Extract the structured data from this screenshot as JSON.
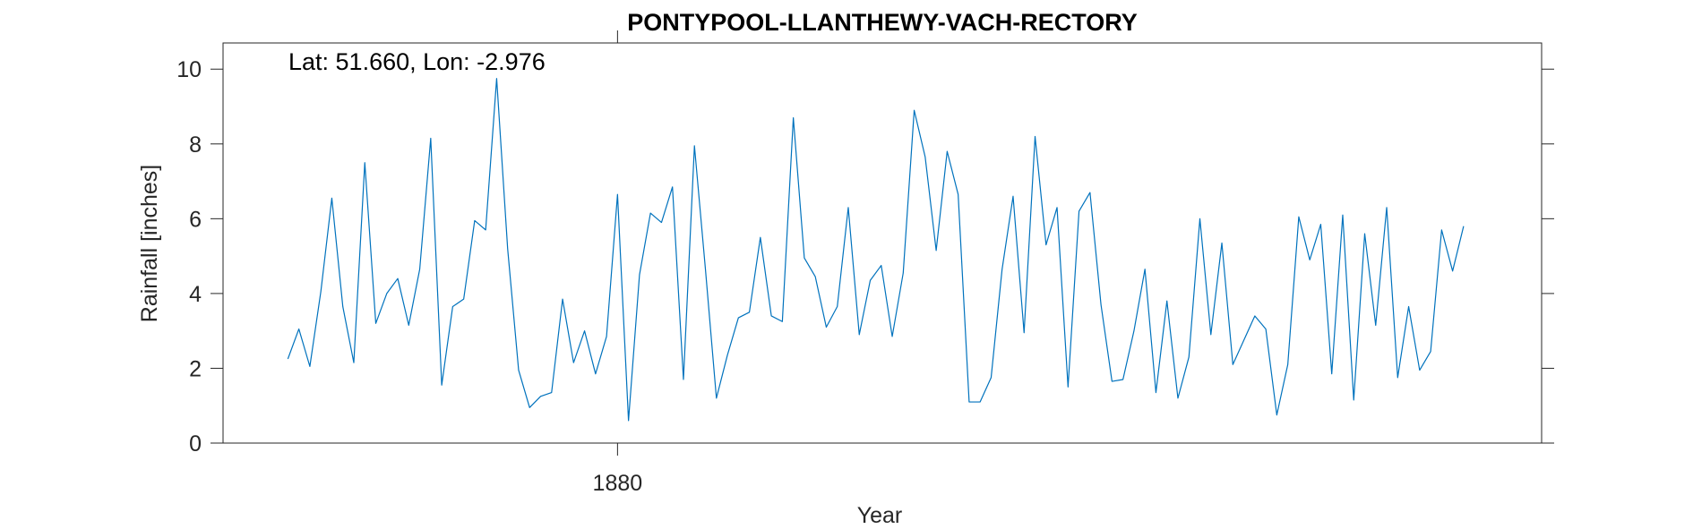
{
  "chart_data": {
    "type": "line",
    "title": "PONTYPOOL-LLANTHEWY-VACH-RECTORY",
    "xlabel": "Year",
    "ylabel": "Rainfall [inches]",
    "annotation": "Lat: 51.660, Lon: -2.976",
    "xticks": [
      {
        "label": "1880",
        "value": 1880
      }
    ],
    "yticks": [
      0,
      2,
      4,
      6,
      8,
      10
    ],
    "xlim": [
      1876.41,
      1888.41
    ],
    "ylim": [
      0,
      10.7
    ],
    "grid": false,
    "series_color": "#0072BD",
    "series": [
      {
        "x": [
          1877.0,
          1877.1,
          1877.2,
          1877.3,
          1877.4,
          1877.5,
          1877.6,
          1877.7,
          1877.8,
          1877.9,
          1878.0,
          1878.1,
          1878.2,
          1878.3,
          1878.4,
          1878.5,
          1878.6,
          1878.7,
          1878.8,
          1878.9,
          1879.0,
          1879.1,
          1879.2,
          1879.3,
          1879.4,
          1879.5,
          1879.6,
          1879.7,
          1879.8,
          1879.9,
          1880.0,
          1880.1,
          1880.2,
          1880.3,
          1880.4,
          1880.5,
          1880.6,
          1880.7,
          1880.8,
          1880.9,
          1881.0,
          1881.1,
          1881.2,
          1881.3,
          1881.4,
          1881.5,
          1881.6,
          1881.7,
          1881.8,
          1881.9,
          1882.0,
          1882.1,
          1882.2,
          1882.3,
          1882.4,
          1882.5,
          1882.6,
          1882.7,
          1882.8,
          1882.9,
          1883.0,
          1883.1,
          1883.2,
          1883.3,
          1883.4,
          1883.5,
          1883.6,
          1883.7,
          1883.8,
          1883.9,
          1884.0,
          1884.1,
          1884.2,
          1884.3,
          1884.4,
          1884.5,
          1884.6,
          1884.7,
          1884.8,
          1884.9,
          1885.0,
          1885.1,
          1885.2,
          1885.3,
          1885.4,
          1885.5,
          1885.6,
          1885.7,
          1885.8,
          1885.9,
          1886.0,
          1886.1,
          1886.2,
          1886.3,
          1886.4,
          1886.5,
          1886.6,
          1886.7,
          1886.8,
          1886.9,
          1887.0,
          1887.1,
          1887.2,
          1887.3,
          1887.4,
          1887.5,
          1887.6,
          1887.7
        ],
        "values": [
          2.25,
          3.05,
          2.05,
          4.05,
          6.55,
          3.65,
          2.15,
          7.5,
          3.2,
          4.0,
          4.4,
          3.15,
          4.65,
          8.15,
          1.55,
          3.65,
          3.85,
          5.95,
          5.7,
          9.75,
          5.2,
          1.95,
          0.95,
          1.25,
          1.35,
          3.85,
          2.15,
          3.0,
          1.85,
          2.85,
          6.65,
          0.6,
          4.5,
          6.15,
          5.9,
          6.85,
          1.7,
          7.95,
          4.65,
          1.2,
          2.35,
          3.35,
          3.5,
          5.5,
          3.4,
          3.25,
          8.7,
          4.95,
          4.45,
          3.1,
          3.65,
          6.3,
          2.9,
          4.35,
          4.75,
          2.85,
          4.55,
          8.9,
          7.65,
          5.15,
          7.8,
          6.65,
          1.1,
          1.1,
          1.75,
          4.65,
          6.6,
          2.95,
          8.2,
          5.3,
          6.3,
          1.5,
          6.2,
          6.7,
          3.7,
          1.65,
          1.7,
          3.0,
          4.65,
          1.35,
          3.8,
          1.2,
          2.3,
          6.0,
          2.9,
          5.35,
          2.1,
          2.75,
          3.4,
          3.05,
          0.75,
          2.1,
          6.05,
          4.9,
          5.85,
          1.85,
          6.1,
          1.15,
          5.6,
          3.15,
          6.3,
          1.75,
          3.65,
          1.95,
          2.45,
          5.7,
          4.6,
          5.8
        ]
      }
    ]
  }
}
